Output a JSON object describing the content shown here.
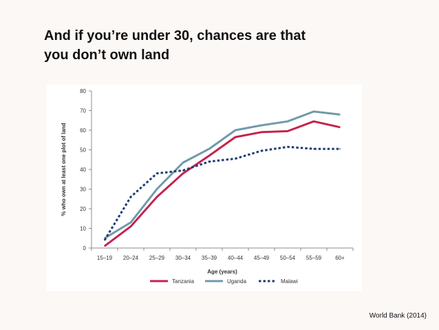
{
  "slide": {
    "title_line1": "And if you’re under 30, chances are that",
    "title_line2": "you don’t own land",
    "source": "World Bank (2014)"
  },
  "colors": {
    "tanzania": "#c4234e",
    "uganda": "#6f9aaa",
    "malawi": "#1d3c73",
    "axis": "#8c8c8c",
    "text": "#333333"
  },
  "chart_data": {
    "type": "line",
    "title": "",
    "xlabel": "Age (years)",
    "ylabel": "% who own at least one plot of land",
    "ylim": [
      0,
      80
    ],
    "yticks": [
      0,
      10,
      20,
      30,
      40,
      50,
      60,
      70,
      80
    ],
    "categories": [
      "15–19",
      "20–24",
      "25–29",
      "30–34",
      "35–39",
      "40–44",
      "45–49",
      "50–54",
      "55–59",
      "60+"
    ],
    "series": [
      {
        "name": "Tanzania",
        "key": "tanzania",
        "style": "solid",
        "values": [
          1,
          11,
          26,
          38,
          47,
          56.5,
          59,
          59.5,
          64.5,
          61.5
        ]
      },
      {
        "name": "Uganda",
        "key": "uganda",
        "style": "solid",
        "values": [
          5,
          13,
          30,
          43.5,
          50.5,
          60,
          62.5,
          64.5,
          69.5,
          68
        ]
      },
      {
        "name": "Malawi",
        "key": "malawi",
        "style": "dotted",
        "values": [
          4,
          26,
          38,
          39.5,
          44,
          45.5,
          49.5,
          51.5,
          50.5,
          50.5
        ]
      }
    ],
    "legend": "bottom"
  }
}
